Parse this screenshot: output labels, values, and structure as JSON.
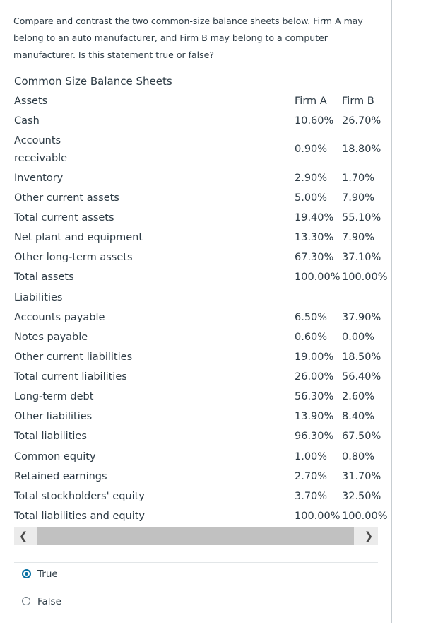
{
  "question": {
    "text": "Compare and contrast the two common-size balance sheets below.  Firm A may belong to an auto manufacturer, and Firm B may belong to a computer manufacturer. Is this statement true or false?"
  },
  "table": {
    "title": "Common Size Balance Sheets",
    "rows": [
      {
        "label": "Assets",
        "a": "Firm A",
        "b": "Firm B"
      },
      {
        "label": "Cash",
        "a": "10.60%",
        "b": "26.70%"
      },
      {
        "label": "Accounts receivable",
        "a": "0.90%",
        "b": "18.80%"
      },
      {
        "label": "Inventory",
        "a": "2.90%",
        "b": "1.70%"
      },
      {
        "label": "Other current assets",
        "a": "5.00%",
        "b": "7.90%"
      },
      {
        "label": "Total current assets",
        "a": "19.40%",
        "b": "55.10%"
      },
      {
        "label": "Net plant and equipment",
        "a": "13.30%",
        "b": "7.90%"
      },
      {
        "label": "Other long-term assets",
        "a": "67.30%",
        "b": "37.10%"
      },
      {
        "label": "Total assets",
        "a": "100.00%",
        "b": "100.00%"
      },
      {
        "label": "Liabilities",
        "a": "",
        "b": ""
      },
      {
        "label": "Accounts payable",
        "a": "6.50%",
        "b": "37.90%"
      },
      {
        "label": "Notes payable",
        "a": "0.60%",
        "b": "0.00%"
      },
      {
        "label": "Other current liabilities",
        "a": "19.00%",
        "b": "18.50%"
      },
      {
        "label": "Total current liabilities",
        "a": "26.00%",
        "b": "56.40%"
      },
      {
        "label": "Long-term debt",
        "a": "56.30%",
        "b": "2.60%"
      },
      {
        "label": "Other liabilities",
        "a": "13.90%",
        "b": "8.40%"
      },
      {
        "label": "Total liabilities",
        "a": "96.30%",
        "b": "67.50%"
      },
      {
        "label": "Common equity",
        "a": "1.00%",
        "b": "0.80%"
      },
      {
        "label": "Retained earnings",
        "a": "2.70%",
        "b": "31.70%"
      },
      {
        "label": "Total stockholders' equity",
        "a": "3.70%",
        "b": "32.50%"
      },
      {
        "label": "Total liabilities and equity",
        "a": "100.00%",
        "b": "100.00%"
      }
    ]
  },
  "scrollbar": {
    "left_icon": "chevron-left-icon",
    "right_icon": "chevron-right-icon"
  },
  "options": [
    {
      "label": "True",
      "selected": true
    },
    {
      "label": "False",
      "selected": false
    }
  ],
  "colors": {
    "accent": "#0770a3",
    "text": "#2d3b45"
  }
}
